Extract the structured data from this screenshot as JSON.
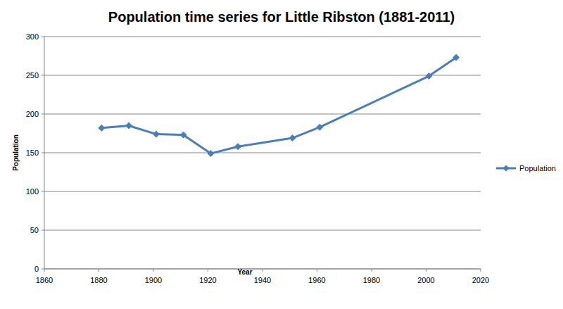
{
  "chart_data": {
    "type": "line",
    "title": "Population time series for Little Ribston (1881-2011)",
    "x_label": "Year",
    "y_label": "Population",
    "x": [
      1881,
      1891,
      1901,
      1911,
      1921,
      1931,
      1951,
      1961,
      2001,
      2011
    ],
    "series": [
      {
        "name": "Population",
        "color": "#4a7ebb",
        "marker": "diamond",
        "values": [
          182,
          185,
          174,
          173,
          149,
          158,
          169,
          183,
          249,
          273
        ]
      }
    ],
    "xlim": [
      1860,
      2020
    ],
    "xticks": [
      1860,
      1880,
      1900,
      1920,
      1940,
      1960,
      1980,
      2000,
      2020
    ],
    "ylim": [
      0,
      300
    ],
    "yticks": [
      0,
      50,
      100,
      150,
      200,
      250,
      300
    ],
    "grid": true,
    "legend": "right"
  }
}
